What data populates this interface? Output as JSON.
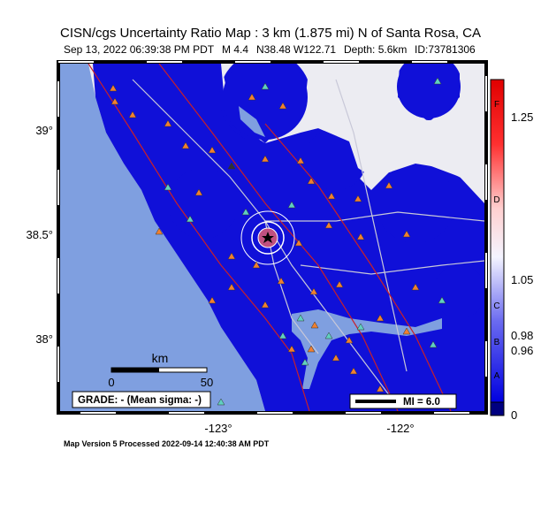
{
  "header": {
    "title": "CISN/cgs Uncertainty Ratio Map : 3 km (1.875 mi) N of Santa Rosa, CA",
    "date": "Sep 13, 2022 06:39:38 PM PDT",
    "magnitude": "M 4.4",
    "location": "N38.48 W122.71",
    "depth": "Depth: 5.6km",
    "event_id": "ID:73781306"
  },
  "map": {
    "lat_labels": [
      "39°",
      "38.5°",
      "38°"
    ],
    "lon_labels": [
      "-123°",
      "-122°"
    ],
    "scale_bar": {
      "unit": "km",
      "labels": [
        "0",
        "50"
      ]
    },
    "grade": "GRADE: - (Mean sigma: -)",
    "mi_legend": "MI = 6.0"
  },
  "colorbar": {
    "grades": [
      "F",
      "D",
      "C",
      "B",
      "A"
    ],
    "values": [
      "1.25",
      "1.05",
      "0.98",
      "0.96",
      "0"
    ]
  },
  "footer": "Map Version 5 Processed 2022-09-14 12:40:38 AM PDT"
}
